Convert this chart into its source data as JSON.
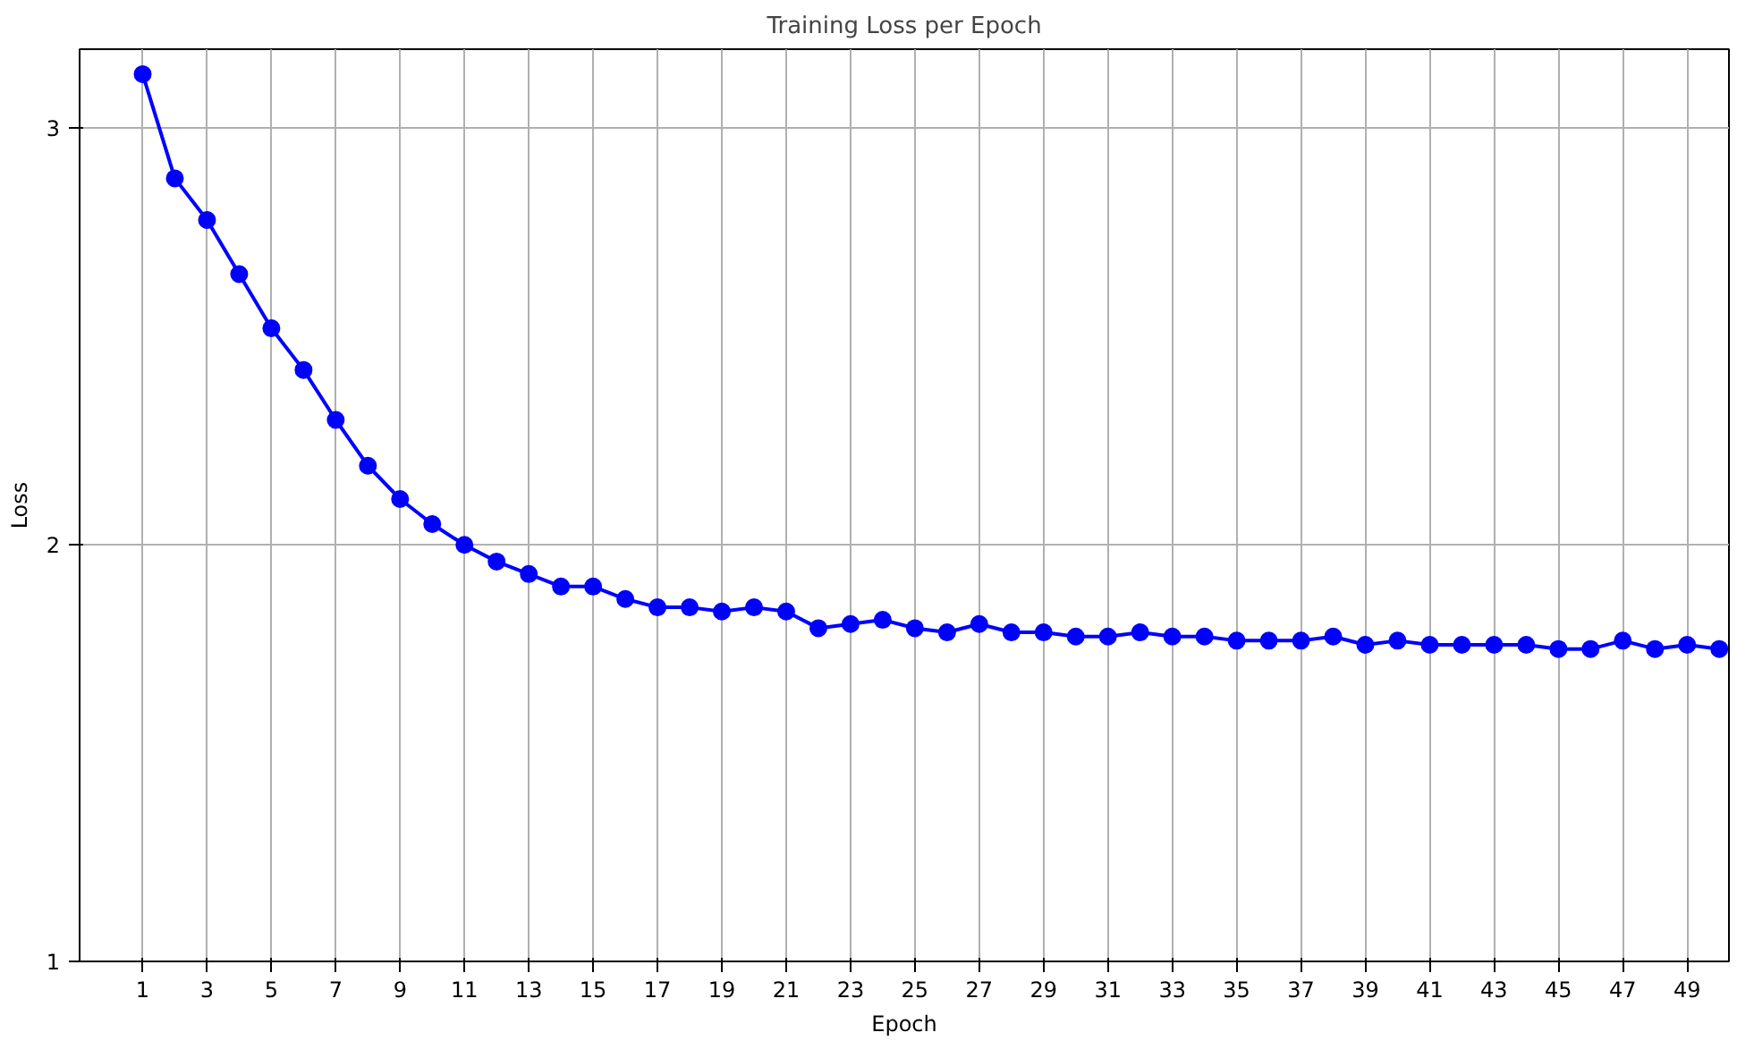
{
  "chart_data": {
    "type": "line",
    "title": "Training Loss per Epoch",
    "xlabel": "Epoch",
    "ylabel": "Loss",
    "x": [
      1,
      2,
      3,
      4,
      5,
      6,
      7,
      8,
      9,
      10,
      11,
      12,
      13,
      14,
      15,
      16,
      17,
      18,
      19,
      20,
      21,
      22,
      23,
      24,
      25,
      26,
      27,
      28,
      29,
      30,
      31,
      32,
      33,
      34,
      35,
      36,
      37,
      38,
      39,
      40,
      41,
      42,
      43,
      44,
      45,
      46,
      47,
      48,
      49,
      50
    ],
    "series": [
      {
        "color": "#0000ff",
        "values": [
          3.13,
          2.88,
          2.78,
          2.65,
          2.52,
          2.42,
          2.3,
          2.19,
          2.11,
          2.05,
          2.0,
          1.96,
          1.93,
          1.9,
          1.9,
          1.87,
          1.85,
          1.85,
          1.84,
          1.85,
          1.84,
          1.8,
          1.81,
          1.82,
          1.8,
          1.79,
          1.81,
          1.79,
          1.79,
          1.78,
          1.78,
          1.79,
          1.78,
          1.78,
          1.77,
          1.77,
          1.77,
          1.78,
          1.76,
          1.77,
          1.76,
          1.76,
          1.76,
          1.76,
          1.75,
          1.75,
          1.77,
          1.75,
          1.76,
          1.75
        ]
      }
    ],
    "xlim": [
      -0.96,
      50.3
    ],
    "ylim": [
      1,
      3.19
    ],
    "xticks": [
      1,
      3,
      5,
      7,
      9,
      11,
      13,
      15,
      17,
      19,
      21,
      23,
      25,
      27,
      29,
      31,
      33,
      35,
      37,
      39,
      41,
      43,
      45,
      47,
      49
    ],
    "yticks": [
      1,
      2,
      3
    ],
    "grid": true,
    "marker": "circle",
    "line_style": "solid"
  }
}
